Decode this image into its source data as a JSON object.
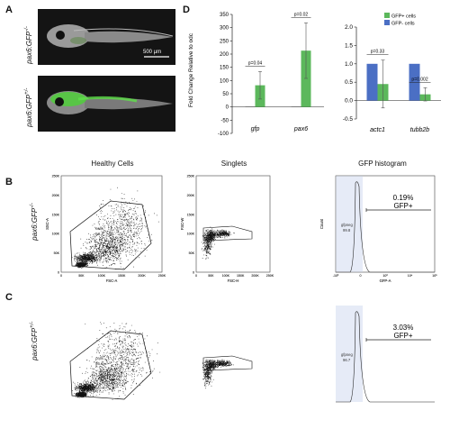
{
  "panels": {
    "a": "A",
    "b": "B",
    "c": "C",
    "d": "D"
  },
  "panel_a": {
    "row1_label": "pax6:GFP",
    "row1_sup": "-/-",
    "row2_label": "pax6:GFP",
    "row2_sup": "+/-",
    "scale_bar": "500 µm"
  },
  "panel_d": {
    "ylabel": "Fold Change Relative to odc",
    "legend": [
      "GFP+ cells",
      "GFP- cells"
    ],
    "colors": {
      "gfp_pos": "#5cb85c",
      "gfp_neg": "#4b6fc4"
    }
  },
  "chart_data": [
    {
      "type": "bar",
      "categories": [
        "gfp",
        "pax6"
      ],
      "series": [
        {
          "name": "GFP- cells",
          "values": [
            1,
            1
          ]
        },
        {
          "name": "GFP+ cells",
          "values": [
            82,
            213
          ],
          "errors": [
            52,
            105
          ]
        }
      ],
      "pvalues": [
        "p=0.04",
        "p=0.02"
      ],
      "ylim": [
        -100,
        350
      ],
      "yticks": [
        "-100",
        "-50",
        "0",
        "50",
        "100",
        "150",
        "200",
        "250",
        "300",
        "350"
      ]
    },
    {
      "type": "bar",
      "categories": [
        "actc1",
        "tubb2b"
      ],
      "series": [
        {
          "name": "GFP- cells",
          "values": [
            1.0,
            1.0
          ]
        },
        {
          "name": "GFP+ cells",
          "values": [
            0.45,
            0.17
          ],
          "errors": [
            0.65,
            0.18
          ]
        }
      ],
      "pvalues": [
        "p=0.33",
        "p=0.002"
      ],
      "ylim": [
        -0.5,
        2.0
      ],
      "yticks": [
        "-0.5",
        "0.0",
        "0.5",
        "1.0",
        "1.5",
        "2.0"
      ]
    }
  ],
  "facs": {
    "col_titles": [
      "Healthy Cells",
      "Singlets",
      "GFP histogram"
    ],
    "row_b_label": "pax6:GFP",
    "row_b_sup": "-/-",
    "row_c_label": "pax6:GFP",
    "row_c_sup": "+/-",
    "p1": {
      "xlabel": "FSC-A",
      "ylabel": "SSC-A",
      "yticks": [
        "250K",
        "200K",
        "150K",
        "100K",
        "50K",
        "0"
      ],
      "xticks": [
        "0",
        "50K",
        "100K",
        "150K",
        "200K",
        "250K"
      ]
    },
    "p2": {
      "xlabel": "FSC-H",
      "ylabel": "FSC-W",
      "yticks": [
        "250K",
        "200K",
        "150K",
        "100K",
        "50K",
        "0"
      ],
      "xticks": [
        "0",
        "50K",
        "100K",
        "150K",
        "200K",
        "250K"
      ]
    },
    "p3": {
      "xlabel": "GFP-A",
      "ylabel": "Count",
      "xticks": [
        "-10³",
        "0",
        "10³",
        "10⁴",
        "10⁵"
      ]
    },
    "b": {
      "cells_gate": "cells",
      "cells_pct": "53.2",
      "singlet_gate": "Single Cells",
      "singlet_pct": "98.1",
      "neg_gate": "gfpneg",
      "neg_pct": "99.8",
      "pos_pct": "0.19%",
      "pos_label": "GFP+"
    },
    "c": {
      "cells_gate": "cells",
      "cells_pct": "56.6",
      "singlet_gate": "Single Cells",
      "singlet_pct": "96.2",
      "neg_gate": "gfpneg",
      "neg_pct": "96.7",
      "pos_pct": "3.03%",
      "pos_label": "GFP+"
    }
  }
}
